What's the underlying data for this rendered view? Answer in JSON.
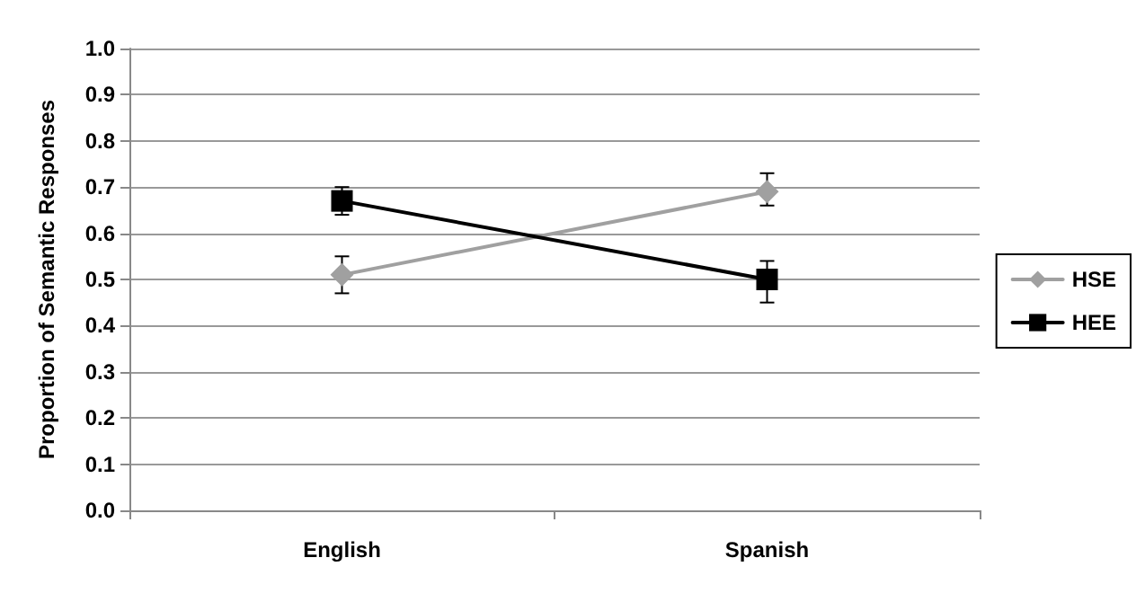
{
  "chart_data": {
    "type": "line",
    "ylabel": "Proportion of Semantic Responses",
    "categories": [
      "English",
      "Spanish"
    ],
    "series": [
      {
        "name": "HSE",
        "color": "#a0a0a0",
        "marker": "diamond",
        "values": [
          0.51,
          0.69
        ],
        "errors": [
          [
            0.47,
            0.55
          ],
          [
            0.66,
            0.73
          ]
        ]
      },
      {
        "name": "HEE",
        "color": "#000000",
        "marker": "square",
        "values": [
          0.67,
          0.5
        ],
        "errors": [
          [
            0.64,
            0.7
          ],
          [
            0.45,
            0.54
          ]
        ]
      }
    ],
    "ylim": [
      0,
      1
    ],
    "yticks": [
      {
        "value": 0,
        "label": "0.0"
      },
      {
        "value": 0.1,
        "label": "0.1"
      },
      {
        "value": 0.2,
        "label": "0.2"
      },
      {
        "value": 0.3,
        "label": "0.3"
      },
      {
        "value": 0.4,
        "label": "0.4"
      },
      {
        "value": 0.5,
        "label": "0.5"
      },
      {
        "value": 0.6,
        "label": "0.6"
      },
      {
        "value": 0.7,
        "label": "0.7"
      },
      {
        "value": 0.8,
        "label": "0.8"
      },
      {
        "value": 0.9,
        "label": "0.9"
      },
      {
        "value": 1,
        "label": "1.0"
      }
    ],
    "grid": "y",
    "legend": "right",
    "line_style": "solid"
  }
}
